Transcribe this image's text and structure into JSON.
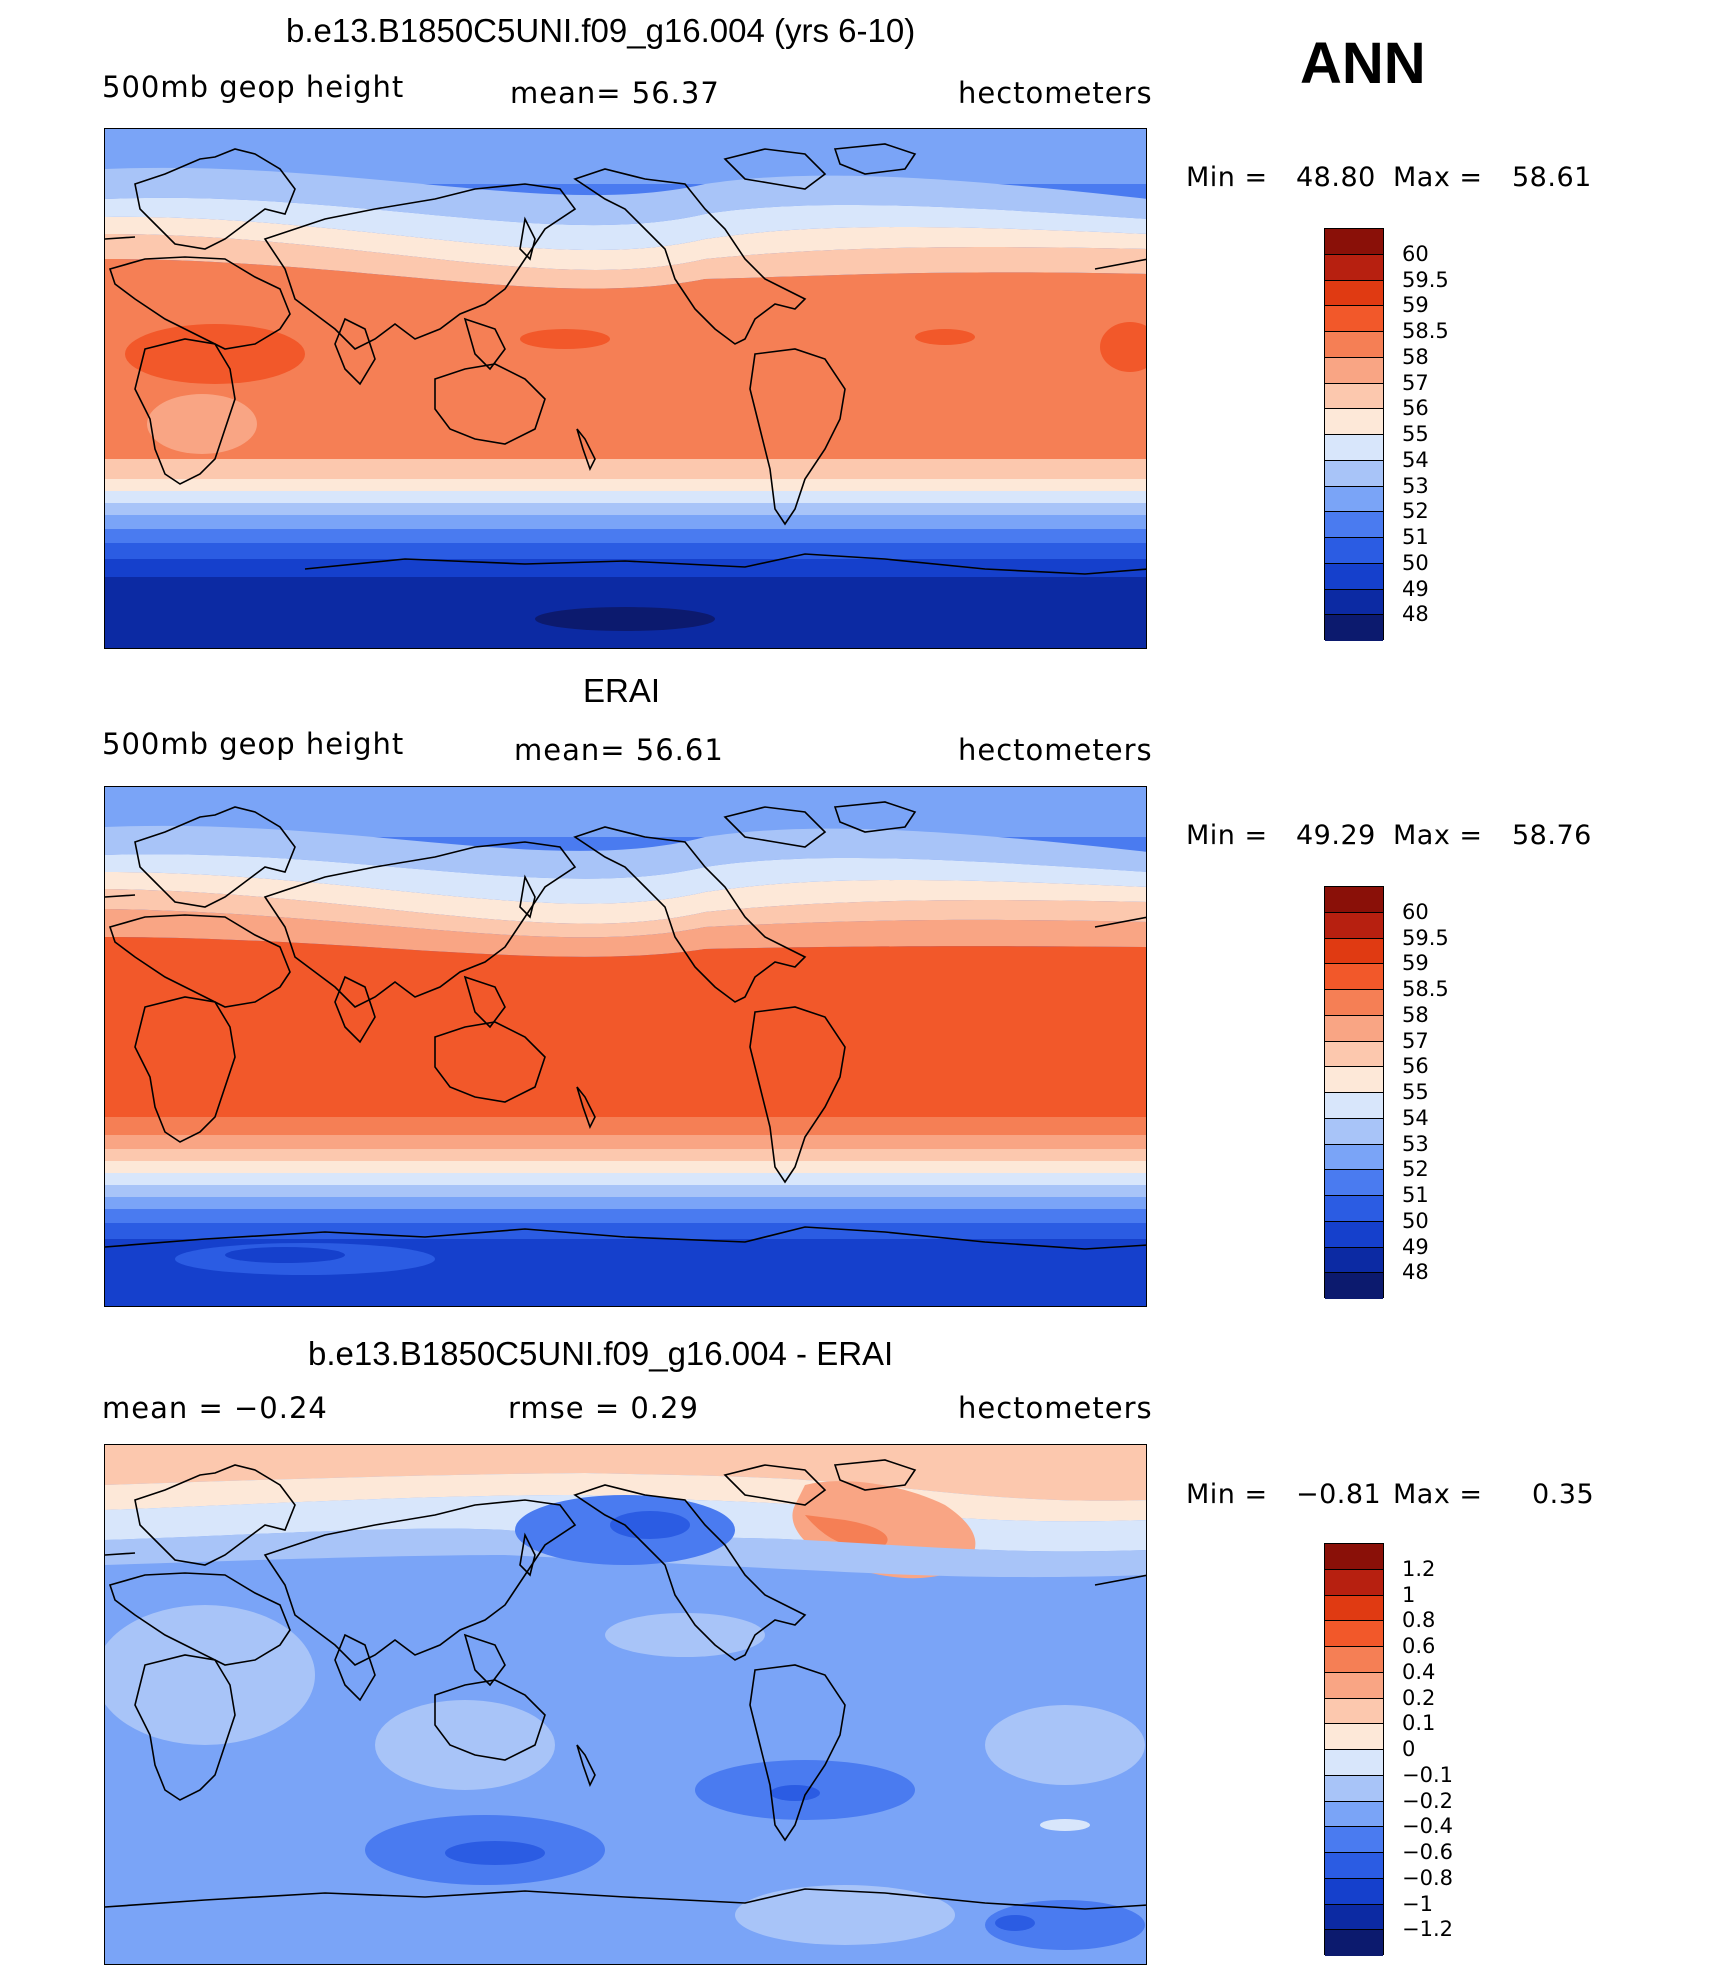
{
  "season": "ANN",
  "colors": {
    "c0": "#0c1a6e",
    "c1": "#0c2aa3",
    "c2": "#1540cc",
    "c3": "#2b5ce3",
    "c4": "#4a7bf0",
    "c5": "#7aa4f7",
    "c6": "#a8c4f8",
    "c7": "#d8e6fb",
    "c8": "#fde8d8",
    "c9": "#fcc8ae",
    "c10": "#f9a584",
    "c11": "#f57f55",
    "c12": "#f2582a",
    "c13": "#e03a12",
    "c14": "#b72010",
    "c15": "#8a1008"
  },
  "panels": [
    {
      "id": "model",
      "title": "b.e13.B1850C5UNI.f09_g16.004 (yrs 6-10)",
      "left_label": "500mb  geop  height",
      "center_label": "mean=   56.37",
      "right_label": "hectometers",
      "min_label": "Min  =",
      "min_value": "48.80",
      "max_label": "Max  =",
      "max_value": "58.61",
      "colorbar_labels": [
        "60",
        "59.5",
        "59",
        "58.5",
        "58",
        "57",
        "56",
        "55",
        "54",
        "53",
        "52",
        "51",
        "50",
        "49",
        "48"
      ]
    },
    {
      "id": "obs",
      "title": "ERAI",
      "left_label": "500mb  geop  height",
      "center_label": "mean=   56.61",
      "right_label": "hectometers",
      "min_label": "Min  =",
      "min_value": "49.29",
      "max_label": "Max  =",
      "max_value": "58.76",
      "colorbar_labels": [
        "60",
        "59.5",
        "59",
        "58.5",
        "58",
        "57",
        "56",
        "55",
        "54",
        "53",
        "52",
        "51",
        "50",
        "49",
        "48"
      ]
    },
    {
      "id": "diff",
      "title": "b.e13.B1850C5UNI.f09_g16.004 - ERAI",
      "left_label": "mean  =    −0.24",
      "center_label": "rmse  =     0.29",
      "right_label": "hectometers",
      "min_label": "Min  =",
      "min_value": "−0.81",
      "max_label": "Max  =",
      "max_value": "0.35",
      "colorbar_labels": [
        "1.2",
        "1",
        "0.8",
        "0.6",
        "0.4",
        "0.2",
        "0.1",
        "0",
        "−0.1",
        "−0.2",
        "−0.4",
        "−0.6",
        "−0.8",
        "−1",
        "−1.2"
      ]
    }
  ]
}
